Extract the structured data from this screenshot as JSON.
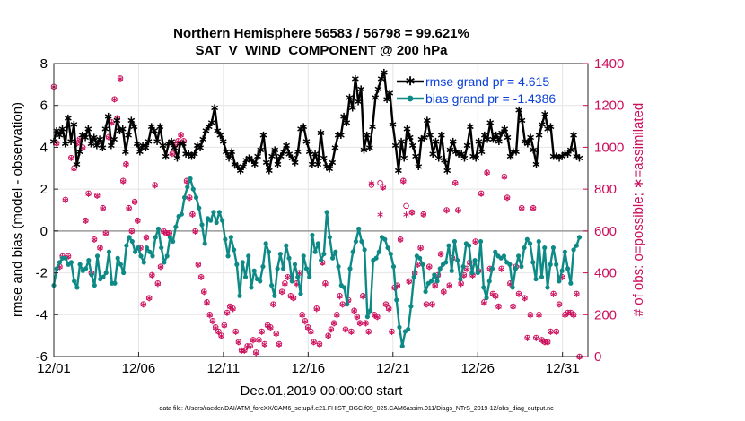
{
  "chart_data": {
    "type": "line",
    "title": "Northern Hemisphere 56583 / 56798 = 99.621%",
    "subtitle": "SAT_V_WIND_COMPONENT @ 200 hPa",
    "xlabel": "Dec.01,2019 00:00:00 start",
    "ylabel_left": "rmse and bias (model - observation)",
    "ylabel_right": "# of obs: o=possible; ∗=assimilated",
    "footer": "data file: /Users/raeder/DAI/ATM_forcXX/CAM6_setup/f.e21.FHIST_BGC.f09_025.CAM6assim.011/Diags_NTrS_2019-12/obs_diag_output.nc",
    "x_ticks": [
      "12/01",
      "12/06",
      "12/11",
      "12/16",
      "12/21",
      "12/26",
      "12/31"
    ],
    "xlim": [
      0,
      31.5
    ],
    "ylim_left": [
      -6,
      8
    ],
    "ylim_right": [
      0,
      1400
    ],
    "yticks_left": [
      "-6",
      "-4",
      "-2",
      "0",
      "2",
      "4",
      "6",
      "8"
    ],
    "yticks_right": [
      "0",
      "200",
      "400",
      "600",
      "800",
      "1000",
      "1200",
      "1400"
    ],
    "grid": true,
    "legend_position": "top-right",
    "colors": {
      "rmse": "#000000",
      "bias": "#0e8a86",
      "nobs": "#cc0e5c",
      "legend_text": "#0a3fd8",
      "zero_line": "#9a9a9a"
    },
    "series": [
      {
        "name": "rmse grand pr = 4.615",
        "axis": "left",
        "values": [
          4.3,
          4.8,
          4.6,
          4.9,
          4.2,
          5.4,
          4.3,
          5.1,
          3.2,
          3.8,
          4.6,
          4.5,
          4.9,
          4.2,
          4.5,
          4.1,
          4.4,
          4.0,
          4.9,
          5.5,
          4.1,
          4.4,
          5.3,
          4.8,
          4.9,
          3.8,
          4.6,
          5.3,
          5.0,
          4.2,
          3.8,
          4.1,
          4.0,
          4.3,
          5.0,
          4.8,
          4.3,
          5.0,
          4.1,
          3.6,
          4.2,
          4.3,
          4.0,
          3.5,
          4.2,
          4.2,
          3.7,
          3.7,
          3.6,
          3.7,
          4.1,
          4.0,
          4.4,
          4.8,
          5.0,
          5.2,
          5.9,
          4.8,
          4.6,
          4.3,
          3.8,
          3.5,
          3.8,
          3.2,
          3.1,
          2.9,
          3.1,
          3.4,
          3.5,
          3.4,
          3.2,
          3.6,
          3.9,
          4.6,
          3.3,
          2.9,
          3.6,
          3.9,
          3.2,
          3.6,
          3.8,
          4.1,
          3.7,
          3.5,
          3.3,
          3.8,
          4.9,
          5.0,
          4.3,
          3.8,
          3.2,
          3.7,
          3.2,
          4.7,
          3.5,
          3.1,
          3.0,
          3.3,
          4.0,
          4.6,
          4.6,
          5.5,
          5.2,
          6.4,
          5.9,
          7.3,
          6.2,
          6.8,
          3.9,
          4.6,
          4.0,
          5.0,
          6.4,
          6.8,
          7.3,
          7.6,
          6.3,
          6.6,
          5.1,
          4.1,
          2.9,
          4.3,
          3.5,
          4.9,
          4.5,
          4.1,
          3.6,
          3.1,
          4.4,
          4.5,
          5.3,
          4.6,
          3.7,
          4.3,
          3.5,
          4.6,
          3.4,
          2.9,
          3.9,
          4.3,
          3.8,
          3.7,
          3.7,
          3.5,
          4.1,
          5.0,
          3.6,
          3.5,
          4.3,
          3.8,
          4.6,
          4.4,
          5.2,
          4.4,
          4.6,
          4.3,
          4.7,
          4.9,
          4.5,
          3.6,
          3.8,
          3.8,
          5.8,
          5.3,
          4.3,
          4.2,
          4.5,
          3.9,
          3.2,
          4.6,
          5.1,
          5.6,
          4.9,
          5.0,
          3.6,
          3.6,
          3.5,
          3.6,
          3.7,
          3.7,
          3.9,
          4.6,
          3.6,
          3.5
        ]
      },
      {
        "name": "bias grand pr = -1.4386",
        "axis": "left",
        "values": [
          -2.6,
          -1.8,
          -1.5,
          -1.3,
          -1.3,
          -1.6,
          -1.5,
          -2.4,
          -2.7,
          -1.6,
          -1.9,
          -1.8,
          -1.4,
          -2.1,
          -2.6,
          -1.2,
          -2.3,
          -2.2,
          -2.0,
          -1.0,
          -2.5,
          -2.5,
          -1.3,
          -1.6,
          -2.0,
          -0.7,
          -0.3,
          -0.5,
          -1.0,
          -0.8,
          -1.2,
          -1.5,
          -0.8,
          -1.0,
          -1.2,
          -0.3,
          0.1,
          -0.8,
          -1.5,
          -1.2,
          -0.3,
          -0.5,
          0.2,
          0.7,
          0.8,
          1.6,
          2.1,
          2.5,
          2.0,
          1.6,
          1.1,
          0.3,
          -0.6,
          0.6,
          0.5,
          0.9,
          0.4,
          0.9,
          0.5,
          -0.4,
          -1.2,
          -0.3,
          -0.9,
          -1.6,
          -3.1,
          -1.5,
          -2.2,
          -1.2,
          -2.7,
          -1.9,
          -2.3,
          -2.4,
          -1.7,
          -0.6,
          -1.0,
          -2.6,
          -3.1,
          -1.8,
          -1.1,
          -1.8,
          -0.7,
          -1.3,
          -2.4,
          -1.6,
          -2.2,
          -3.0,
          -1.2,
          -1.8,
          -2.2,
          -0.2,
          -1.0,
          -0.6,
          -1.4,
          -1.1,
          0.9,
          -0.3,
          -1.3,
          -1.0,
          -1.7,
          -2.6,
          -2.7,
          -3.5,
          -1.8,
          -1.0,
          -0.5,
          0.1,
          -0.5,
          -0.9,
          -4.1,
          -3.8,
          -1.4,
          -1.3,
          -1.0,
          -0.3,
          -0.4,
          -0.8,
          -1.1,
          -1.7,
          -3.3,
          -4.6,
          -5.5,
          -4.8,
          -4.7,
          -3.6,
          -2.2,
          -1.2,
          -1.3,
          -1.6,
          -2.9,
          -2.5,
          -2.4,
          -2.1,
          -2.4,
          -1.8,
          -1.6,
          -1.5,
          -0.7,
          -1.9,
          -0.5,
          -1.4,
          -2.3,
          -1.7,
          -0.6,
          -0.7,
          -2.0,
          -1.4,
          -2.0,
          -0.5,
          -2.7,
          -3.2,
          -2.4,
          -1.8,
          -1.0,
          -1.2,
          -1.3,
          -1.2,
          -1.5,
          -1.6,
          -2.7,
          -1.8,
          -1.2,
          -1.7,
          -0.8,
          -0.4,
          -0.6,
          -1.5,
          -2.3,
          -0.5,
          -2.2,
          -0.8,
          -2.7,
          -1.6,
          -0.8,
          -1.6,
          -2.4,
          -1.9,
          -1.0,
          -1.8,
          -2.5,
          -0.9,
          -0.7,
          -0.3
        ]
      },
      {
        "name": "# of obs: o=possible",
        "axis": "right",
        "style": "markers",
        "values": [
          1290,
          1020,
          430,
          480,
          750,
          480,
          950,
          900,
          1020,
          1040,
          1000,
          650,
          780,
          400,
          560,
          770,
          520,
          710,
          590,
          1050,
          1120,
          1230,
          1140,
          1330,
          840,
          920,
          710,
          600,
          740,
          650,
          520,
          250,
          570,
          280,
          390,
          820,
          350,
          430,
          600,
          590,
          590,
          970,
          1010,
          1030,
          1060,
          1030,
          840,
          760,
          680,
          600,
          440,
          380,
          310,
          260,
          200,
          170,
          140,
          120,
          100,
          150,
          210,
          240,
          230,
          120,
          70,
          30,
          30,
          50,
          50,
          80,
          20,
          80,
          120,
          60,
          150,
          140,
          250,
          110,
          60,
          310,
          350,
          380,
          290,
          280,
          350,
          400,
          200,
          170,
          140,
          120,
          70,
          230,
          60,
          450,
          350,
          100,
          130,
          160,
          200,
          290,
          250,
          130,
          270,
          120,
          220,
          190,
          160,
          290,
          160,
          120,
          820,
          200,
          190,
          830,
          810,
          250,
          230,
          120,
          330,
          340,
          560,
          840,
          720,
          360,
          690,
          400,
          440,
          520,
          680,
          250,
          430,
          250,
          340,
          390,
          490,
          310,
          700,
          340,
          470,
          830,
          700,
          350,
          390,
          420,
          450,
          390,
          550,
          410,
          780,
          260,
          880,
          420,
          300,
          290,
          240,
          420,
          860,
          760,
          350,
          240,
          430,
          300,
          710,
          280,
          90,
          200,
          710,
          90,
          200,
          80,
          70,
          70,
          120,
          300,
          120,
          250,
          380,
          200,
          210,
          210,
          200,
          300,
          0
        ]
      },
      {
        "name": "# of obs: ∗=assimilated",
        "axis": "right",
        "style": "markers",
        "values": [
          1290,
          1020,
          430,
          480,
          750,
          480,
          950,
          900,
          1020,
          1040,
          1000,
          650,
          780,
          400,
          560,
          770,
          520,
          710,
          590,
          1050,
          1120,
          1230,
          1140,
          1330,
          840,
          920,
          710,
          600,
          740,
          650,
          520,
          250,
          570,
          280,
          390,
          820,
          350,
          430,
          600,
          590,
          590,
          970,
          1010,
          1030,
          1060,
          1030,
          840,
          760,
          680,
          600,
          440,
          380,
          310,
          260,
          200,
          170,
          140,
          120,
          100,
          150,
          210,
          240,
          230,
          120,
          70,
          30,
          30,
          50,
          50,
          80,
          20,
          80,
          120,
          60,
          150,
          140,
          250,
          110,
          60,
          310,
          350,
          380,
          290,
          280,
          350,
          400,
          200,
          170,
          140,
          120,
          70,
          230,
          60,
          450,
          350,
          100,
          130,
          160,
          200,
          290,
          250,
          130,
          270,
          120,
          220,
          190,
          160,
          290,
          160,
          120,
          830,
          200,
          190,
          680,
          810,
          250,
          230,
          120,
          330,
          340,
          560,
          840,
          680,
          360,
          690,
          400,
          440,
          520,
          680,
          250,
          430,
          250,
          340,
          390,
          490,
          310,
          700,
          340,
          470,
          830,
          700,
          350,
          390,
          420,
          450,
          390,
          550,
          410,
          780,
          260,
          880,
          420,
          300,
          290,
          240,
          420,
          860,
          760,
          350,
          240,
          430,
          300,
          710,
          280,
          90,
          200,
          710,
          90,
          200,
          80,
          70,
          70,
          120,
          300,
          120,
          250,
          380,
          200,
          210,
          210,
          200,
          300,
          0
        ]
      }
    ]
  }
}
